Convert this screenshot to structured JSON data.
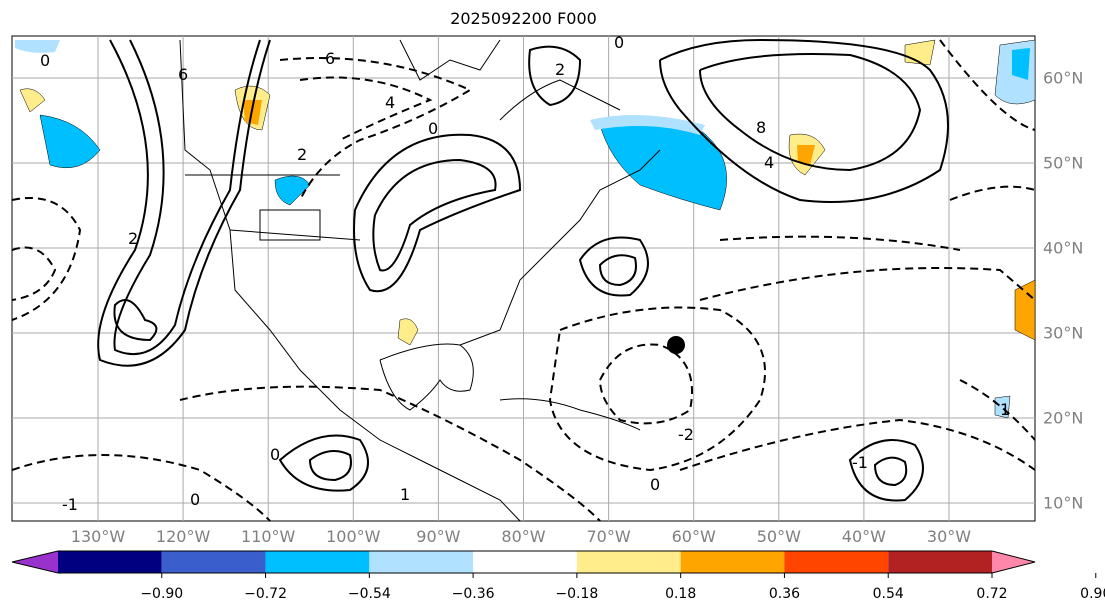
{
  "title": "2025092200 F000",
  "lon_labels": [
    "130°W",
    "120°W",
    "110°W",
    "100°W",
    "90°W",
    "80°W",
    "70°W",
    "60°W",
    "50°W",
    "40°W",
    "30°W"
  ],
  "lat_labels": [
    "60°N",
    "50°N",
    "40°N",
    "30°N",
    "20°N",
    "10°N"
  ],
  "contour_labels": [
    "0",
    "6",
    "6",
    "4",
    "2",
    "2",
    "0",
    "-1",
    "-1",
    "0",
    "8",
    "4",
    "2",
    "0",
    "0",
    "-2",
    "1",
    "0",
    "1"
  ],
  "colorbar": {
    "ticks": [
      "−0.90",
      "−0.72",
      "−0.54",
      "−0.36",
      "−0.18",
      "0.18",
      "0.36",
      "0.54",
      "0.72",
      "0.90"
    ],
    "colors": [
      "#9932cc",
      "#000080",
      "#3a5fcd",
      "#00bfff",
      "#b0e2ff",
      "#ffffff",
      "#ffec8b",
      "#ffa500",
      "#ff4500",
      "#b22222",
      "#ff88aa"
    ]
  },
  "marker": {
    "label": "storm-position",
    "lon": -60.5,
    "lat": 28.5
  }
}
